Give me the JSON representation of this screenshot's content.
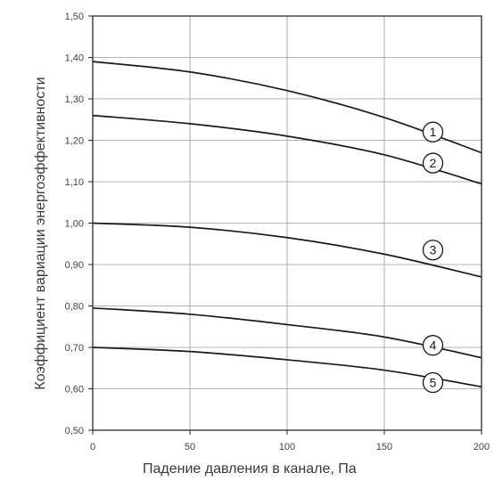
{
  "chart_data": {
    "type": "line",
    "xlabel": "Падение давления в канале, Па",
    "ylabel": "Коэффициент вариации энергоэффективности",
    "xlim": [
      0,
      200
    ],
    "ylim": [
      0.5,
      1.5
    ],
    "x_ticks": [
      0,
      50,
      100,
      150,
      200
    ],
    "x_tick_labels": [
      "0",
      "50",
      "100",
      "150",
      "200"
    ],
    "y_ticks": [
      0.5,
      0.6,
      0.7,
      0.8,
      0.9,
      1.0,
      1.1,
      1.2,
      1.3,
      1.4,
      1.5
    ],
    "y_tick_labels": [
      "0,50",
      "0,60",
      "0,70",
      "0,80",
      "0,90",
      "1,00",
      "1,10",
      "1,20",
      "1,30",
      "1,40",
      "1,50"
    ],
    "grid": true,
    "x": [
      0,
      50,
      100,
      150,
      200
    ],
    "series": [
      {
        "name": "1",
        "values": [
          1.39,
          1.365,
          1.32,
          1.255,
          1.17
        ]
      },
      {
        "name": "2",
        "values": [
          1.26,
          1.24,
          1.21,
          1.165,
          1.095
        ]
      },
      {
        "name": "3",
        "values": [
          1.0,
          0.99,
          0.965,
          0.925,
          0.87
        ]
      },
      {
        "name": "4",
        "values": [
          0.795,
          0.78,
          0.755,
          0.725,
          0.675
        ]
      },
      {
        "name": "5",
        "values": [
          0.7,
          0.69,
          0.67,
          0.645,
          0.605
        ]
      }
    ],
    "label_x": [
      175,
      175,
      175,
      175,
      175
    ],
    "label_y": [
      1.22,
      1.145,
      0.935,
      0.705,
      0.615
    ]
  }
}
